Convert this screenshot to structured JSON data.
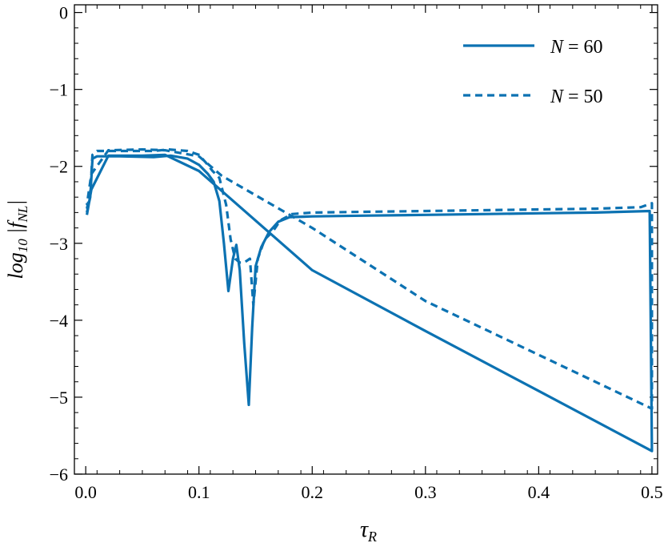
{
  "chart_data": {
    "type": "line",
    "xlabel": "τ_R",
    "ylabel": "log10 |f_NL|",
    "xlim": [
      -0.01,
      0.505
    ],
    "ylim": [
      -6.0,
      0.1
    ],
    "xticks": [
      0.0,
      0.1,
      0.2,
      0.3,
      0.4,
      0.5
    ],
    "xtick_labels": [
      "0.0",
      "0.1",
      "0.2",
      "0.3",
      "0.4",
      "0.5"
    ],
    "yticks": [
      0,
      -1,
      -2,
      -3,
      -4,
      -5,
      -6
    ],
    "ytick_labels": [
      "0",
      "−1",
      "−2",
      "−3",
      "−4",
      "−5",
      "−6"
    ],
    "grid": false,
    "legend_position": "top-right",
    "color": "#0c72b2",
    "series": [
      {
        "name": "N = 60",
        "style": "solid",
        "points": [
          [
            0.001,
            -2.6
          ],
          [
            0.004,
            -2.4
          ],
          [
            0.006,
            -1.9
          ],
          [
            0.01,
            -1.87
          ],
          [
            0.03,
            -1.87
          ],
          [
            0.06,
            -1.88
          ],
          [
            0.075,
            -1.86
          ],
          [
            0.09,
            -1.9
          ],
          [
            0.1,
            -1.98
          ],
          [
            0.108,
            -2.1
          ],
          [
            0.113,
            -2.2
          ],
          [
            0.118,
            -2.45
          ],
          [
            0.122,
            -3.0
          ],
          [
            0.126,
            -3.62
          ],
          [
            0.13,
            -3.2
          ],
          [
            0.133,
            -3.02
          ],
          [
            0.136,
            -3.35
          ],
          [
            0.14,
            -4.3
          ],
          [
            0.144,
            -5.1
          ],
          [
            0.147,
            -4.1
          ],
          [
            0.15,
            -3.3
          ],
          [
            0.155,
            -3.05
          ],
          [
            0.162,
            -2.85
          ],
          [
            0.17,
            -2.72
          ],
          [
            0.18,
            -2.66
          ],
          [
            0.2,
            -2.65
          ],
          [
            0.25,
            -2.64
          ],
          [
            0.3,
            -2.63
          ],
          [
            0.35,
            -2.62
          ],
          [
            0.4,
            -2.61
          ],
          [
            0.45,
            -2.6
          ],
          [
            0.498,
            -2.58
          ],
          [
            0.5,
            -5.7
          ],
          [
            0.4,
            -4.92
          ],
          [
            0.3,
            -4.14
          ],
          [
            0.2,
            -3.35
          ],
          [
            0.1,
            -2.06
          ],
          [
            0.07,
            -1.85
          ],
          [
            0.05,
            -1.86
          ],
          [
            0.02,
            -1.86
          ],
          [
            0.005,
            -2.3
          ],
          [
            0.001,
            -2.63
          ]
        ]
      },
      {
        "name": "N = 50",
        "style": "dashed",
        "points": [
          [
            0.001,
            -2.55
          ],
          [
            0.004,
            -2.35
          ],
          [
            0.006,
            -1.85
          ],
          [
            0.01,
            -1.8
          ],
          [
            0.03,
            -1.8
          ],
          [
            0.06,
            -1.8
          ],
          [
            0.073,
            -1.78
          ],
          [
            0.09,
            -1.8
          ],
          [
            0.1,
            -1.85
          ],
          [
            0.106,
            -1.95
          ],
          [
            0.112,
            -2.06
          ],
          [
            0.118,
            -2.15
          ],
          [
            0.124,
            -2.5
          ],
          [
            0.128,
            -2.95
          ],
          [
            0.132,
            -3.2
          ],
          [
            0.136,
            -3.25
          ],
          [
            0.14,
            -3.25
          ],
          [
            0.145,
            -3.2
          ],
          [
            0.148,
            -3.8
          ],
          [
            0.152,
            -3.2
          ],
          [
            0.158,
            -2.95
          ],
          [
            0.165,
            -2.85
          ],
          [
            0.172,
            -2.7
          ],
          [
            0.182,
            -2.62
          ],
          [
            0.2,
            -2.6
          ],
          [
            0.25,
            -2.59
          ],
          [
            0.3,
            -2.58
          ],
          [
            0.35,
            -2.57
          ],
          [
            0.4,
            -2.56
          ],
          [
            0.45,
            -2.55
          ],
          [
            0.49,
            -2.53
          ],
          [
            0.5,
            -2.48
          ],
          [
            0.5,
            -5.15
          ],
          [
            0.4,
            -4.45
          ],
          [
            0.3,
            -3.75
          ],
          [
            0.2,
            -2.8
          ],
          [
            0.12,
            -2.12
          ],
          [
            0.1,
            -1.87
          ],
          [
            0.07,
            -1.79
          ],
          [
            0.05,
            -1.78
          ],
          [
            0.02,
            -1.79
          ],
          [
            0.005,
            -2.1
          ],
          [
            0.001,
            -2.5
          ]
        ]
      }
    ]
  }
}
